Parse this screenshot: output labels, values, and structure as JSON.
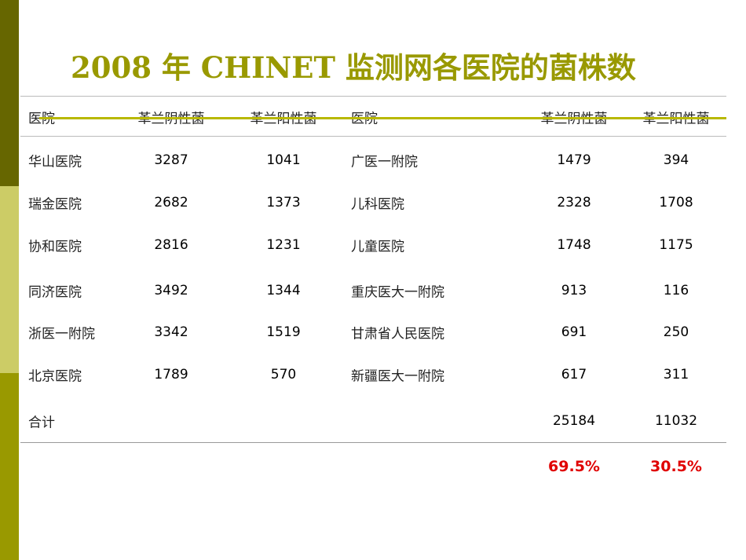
{
  "title": "2008 年 CHINET 监测网各医院的菌株数",
  "colors": {
    "bar_top": "#666600",
    "bar_mid": "#cccc66",
    "bar_bottom": "#999900",
    "title": "#999900",
    "percent": "#e00000"
  },
  "headers": [
    "医院",
    "革兰阴性菌",
    "革兰阳性菌",
    "医院",
    "革兰阴性菌",
    "革兰阳性菌"
  ],
  "rows": [
    [
      "华山医院",
      "3287",
      "1041",
      "广医一附院",
      "1479",
      "394"
    ],
    [
      "瑞金医院",
      "2682",
      "1373",
      "儿科医院",
      "2328",
      "1708"
    ],
    [
      "协和医院",
      "2816",
      "1231",
      "儿童医院",
      "1748",
      "1175"
    ],
    [
      "同济医院",
      "3492",
      "1344",
      "重庆医大一附院",
      "913",
      "116"
    ],
    [
      "浙医一附院",
      "3342",
      "1519",
      "甘肃省人民医院",
      "691",
      "250"
    ],
    [
      "北京医院",
      "1789",
      "570",
      "新疆医大一附院",
      "617",
      "311"
    ]
  ],
  "total": {
    "label": "合计",
    "negative": "25184",
    "positive": "11032"
  },
  "percent": {
    "negative": "69.5%",
    "positive": "30.5%"
  }
}
